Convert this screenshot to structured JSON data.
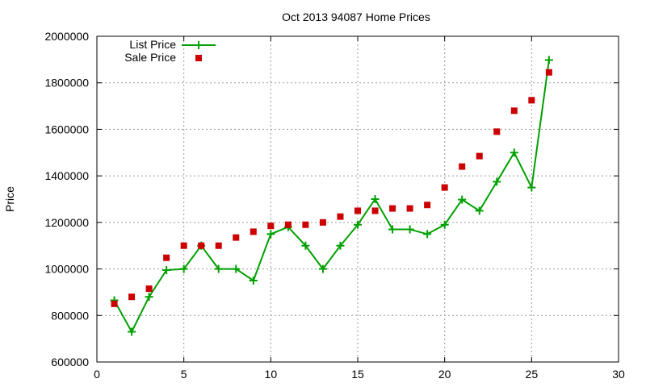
{
  "chart_data": {
    "type": "line",
    "title": "Oct 2013 94087 Home Prices",
    "xlabel": "",
    "ylabel": "Price",
    "xlim": [
      0,
      30
    ],
    "ylim": [
      600000,
      2000000
    ],
    "x_ticks": [
      0,
      5,
      10,
      15,
      20,
      25,
      30
    ],
    "y_ticks": [
      600000,
      800000,
      1000000,
      1200000,
      1400000,
      1600000,
      1800000,
      2000000
    ],
    "grid": true,
    "legend_position": "top-left",
    "x": [
      1,
      2,
      3,
      4,
      5,
      6,
      7,
      8,
      9,
      10,
      11,
      12,
      13,
      14,
      15,
      16,
      17,
      18,
      19,
      20,
      21,
      22,
      23,
      24,
      25,
      26
    ],
    "series": [
      {
        "name": "List Price",
        "style": "line-with-plus-markers",
        "color": "#00a000",
        "values": [
          865000,
          730000,
          880000,
          995000,
          1000000,
          1100000,
          1000000,
          1000000,
          950000,
          1150000,
          1180000,
          1100000,
          1000000,
          1100000,
          1190000,
          1300000,
          1170000,
          1170000,
          1150000,
          1190000,
          1298000,
          1250000,
          1375000,
          1500000,
          1350000,
          1898000
        ]
      },
      {
        "name": "Sale Price",
        "style": "square-markers",
        "color": "#cc0000",
        "values": [
          850000,
          880000,
          915000,
          1048000,
          1100000,
          1100000,
          1100000,
          1135000,
          1160000,
          1185000,
          1190000,
          1190000,
          1200000,
          1225000,
          1250000,
          1250000,
          1260000,
          1260000,
          1275000,
          1350000,
          1440000,
          1485000,
          1590000,
          1680000,
          1725000,
          1845000
        ]
      }
    ]
  }
}
